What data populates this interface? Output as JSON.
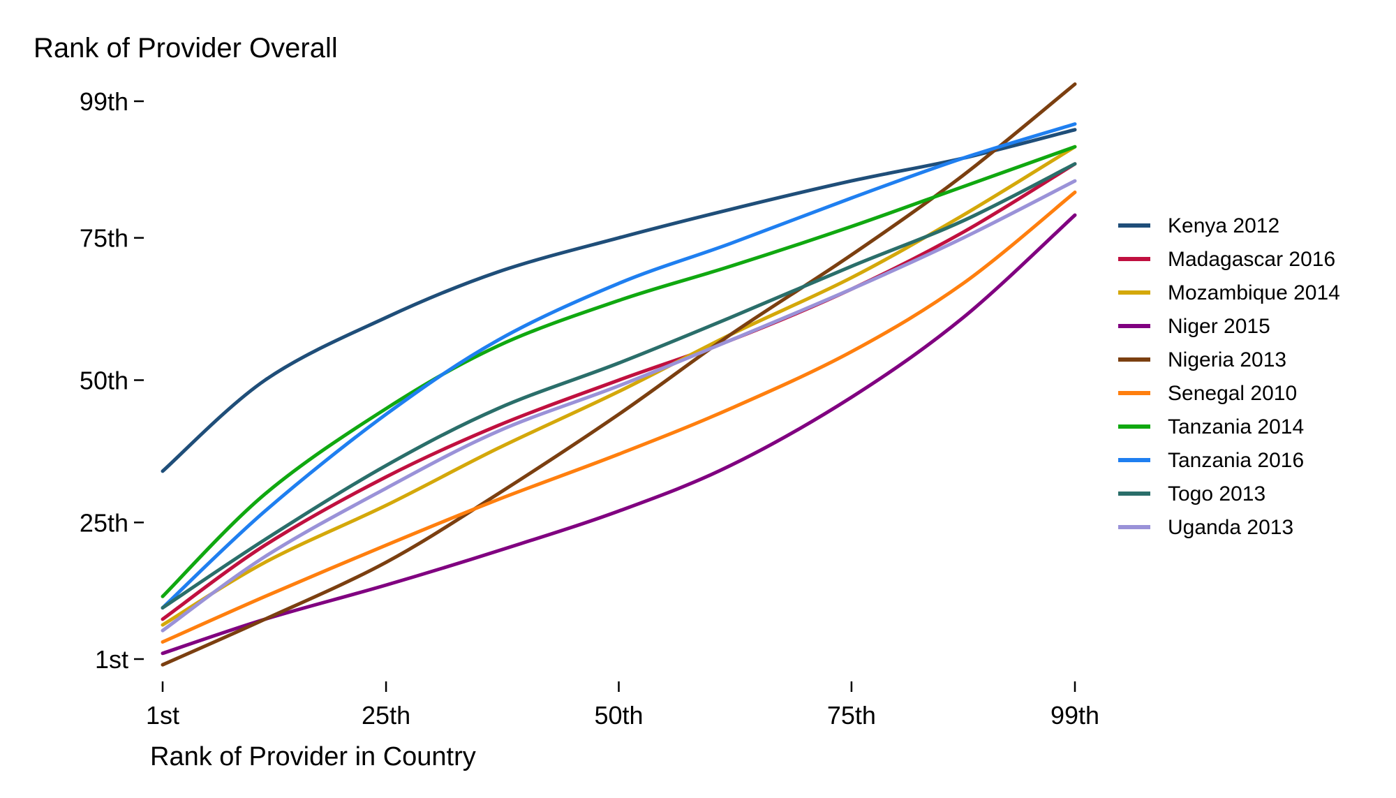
{
  "chart_data": {
    "type": "line",
    "title": "Rank of Provider Overall",
    "xlabel": "Rank of Provider in Country",
    "ylabel": "",
    "xlim": [
      1,
      99
    ],
    "ylim": [
      1,
      99
    ],
    "x_ticks": [
      {
        "value": 1,
        "label": "1st"
      },
      {
        "value": 25,
        "label": "25th"
      },
      {
        "value": 50,
        "label": "50th"
      },
      {
        "value": 75,
        "label": "75th"
      },
      {
        "value": 99,
        "label": "99th"
      }
    ],
    "y_ticks": [
      {
        "value": 1,
        "label": "1st"
      },
      {
        "value": 25,
        "label": "25th"
      },
      {
        "value": 50,
        "label": "50th"
      },
      {
        "value": 75,
        "label": "75th"
      },
      {
        "value": 99,
        "label": "99th"
      }
    ],
    "grid": false,
    "legend_position": "right",
    "series": [
      {
        "name": "Kenya 2012",
        "color": "#1f4e79",
        "x": [
          1,
          12,
          25,
          37,
          50,
          62,
          75,
          87,
          99
        ],
        "values": [
          34,
          50,
          61,
          69,
          75,
          80,
          85,
          89,
          94
        ]
      },
      {
        "name": "Madagascar 2016",
        "color": "#c0103f",
        "x": [
          1,
          12,
          25,
          37,
          50,
          62,
          75,
          87,
          99
        ],
        "values": [
          8,
          21,
          33,
          42,
          50,
          57,
          66,
          76,
          88
        ]
      },
      {
        "name": "Mozambique 2014",
        "color": "#d4a80a",
        "x": [
          1,
          12,
          25,
          37,
          50,
          62,
          75,
          87,
          99
        ],
        "values": [
          7,
          18,
          28,
          38,
          48,
          58,
          68,
          79,
          91
        ]
      },
      {
        "name": "Niger 2015",
        "color": "#800080",
        "x": [
          1,
          12,
          25,
          37,
          50,
          62,
          75,
          87,
          99
        ],
        "values": [
          2,
          8,
          14,
          20,
          27,
          35,
          47,
          61,
          79
        ]
      },
      {
        "name": "Nigeria 2013",
        "color": "#7b3f10",
        "x": [
          1,
          12,
          25,
          37,
          50,
          62,
          75,
          87,
          99
        ],
        "values": [
          0,
          8,
          18,
          30,
          44,
          58,
          72,
          86,
          102
        ]
      },
      {
        "name": "Senegal 2010",
        "color": "#ff7f0e",
        "x": [
          1,
          12,
          25,
          37,
          50,
          62,
          75,
          87,
          99
        ],
        "values": [
          4,
          12,
          21,
          29,
          37,
          45,
          55,
          67,
          83
        ]
      },
      {
        "name": "Tanzania 2014",
        "color": "#10a810",
        "x": [
          1,
          12,
          25,
          37,
          50,
          62,
          75,
          87,
          99
        ],
        "values": [
          12,
          30,
          45,
          56,
          64,
          70,
          77,
          84,
          91
        ]
      },
      {
        "name": "Tanzania 2016",
        "color": "#1f7ff0",
        "x": [
          1,
          12,
          25,
          37,
          50,
          62,
          75,
          87,
          99
        ],
        "values": [
          10,
          27,
          44,
          57,
          67,
          74,
          82,
          89,
          95
        ]
      },
      {
        "name": "Togo 2013",
        "color": "#2a6e6a",
        "x": [
          1,
          12,
          25,
          37,
          50,
          62,
          75,
          87,
          99
        ],
        "values": [
          10,
          22,
          35,
          45,
          53,
          61,
          70,
          78,
          88
        ]
      },
      {
        "name": "Uganda 2013",
        "color": "#9a92d8",
        "x": [
          1,
          12,
          25,
          37,
          50,
          62,
          75,
          87,
          99
        ],
        "values": [
          6,
          19,
          31,
          41,
          49,
          57,
          66,
          75,
          85
        ]
      }
    ]
  }
}
